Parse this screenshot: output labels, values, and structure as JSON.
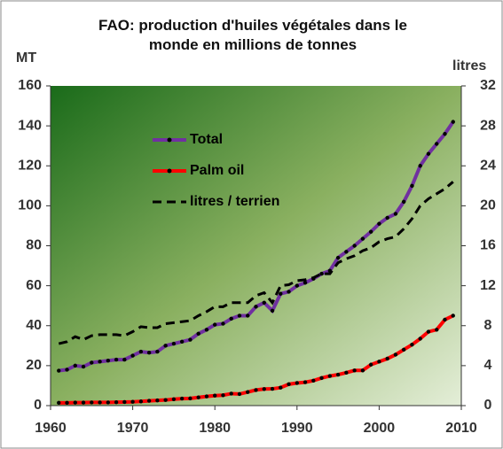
{
  "chart_data": {
    "type": "line",
    "title": "FAO: production d'huiles végétales dans le monde en millions de tonnes",
    "y_label": "MT",
    "y2_label": "litres",
    "x": [
      1961,
      1962,
      1963,
      1964,
      1965,
      1966,
      1967,
      1968,
      1969,
      1970,
      1971,
      1972,
      1973,
      1974,
      1975,
      1976,
      1977,
      1978,
      1979,
      1980,
      1981,
      1982,
      1983,
      1984,
      1985,
      1986,
      1987,
      1988,
      1989,
      1990,
      1991,
      1992,
      1993,
      1994,
      1995,
      1996,
      1997,
      1998,
      1999,
      2000,
      2001,
      2002,
      2003,
      2004,
      2005,
      2006,
      2007,
      2008,
      2009
    ],
    "series": [
      {
        "name": "Total",
        "color": "#7030a0",
        "marker_color": "#000000",
        "values": [
          17.5,
          18,
          20,
          19.5,
          21.5,
          22,
          22.5,
          23,
          23,
          25,
          27,
          26.5,
          27,
          30,
          31,
          32,
          33,
          36,
          38,
          40.5,
          41,
          43.5,
          45,
          45,
          49.5,
          51.5,
          47.5,
          56,
          57,
          60,
          61.5,
          63.5,
          66,
          67.5,
          74,
          77,
          80,
          83.5,
          87,
          91,
          94,
          96,
          102,
          110,
          120,
          126,
          131,
          136,
          142
        ]
      },
      {
        "name": "Palm oil",
        "color": "#ff0000",
        "marker_color": "#000000",
        "values": [
          1.4,
          1.4,
          1.5,
          1.5,
          1.6,
          1.6,
          1.6,
          1.7,
          1.8,
          1.9,
          2.1,
          2.4,
          2.6,
          2.8,
          3.2,
          3.5,
          3.6,
          4.1,
          4.6,
          5,
          5.2,
          6,
          5.8,
          6.8,
          7.8,
          8.3,
          8.4,
          9,
          10.7,
          11.3,
          11.7,
          12.5,
          13.8,
          14.8,
          15.5,
          16.5,
          17.6,
          17.6,
          20.5,
          22,
          23.5,
          25.5,
          28,
          30.5,
          33.5,
          37,
          38,
          43,
          45
        ]
      },
      {
        "name": "litres / terrien",
        "color": "#000000",
        "dashed": true,
        "axis": "y2",
        "values": [
          6.2,
          6.4,
          6.9,
          6.6,
          7,
          7.1,
          7.1,
          7.1,
          7,
          7.4,
          7.9,
          7.8,
          7.8,
          8.2,
          8.3,
          8.4,
          8.5,
          9,
          9.4,
          9.9,
          9.9,
          10.3,
          10.3,
          10.3,
          11,
          11.3,
          10.3,
          12,
          12.1,
          12.5,
          12.6,
          12.8,
          13.2,
          13.2,
          14.3,
          14.7,
          15,
          15.5,
          15.8,
          16.4,
          16.7,
          16.9,
          17.7,
          18.7,
          20,
          20.7,
          21.2,
          21.7,
          22.4
        ]
      }
    ],
    "xlim": [
      1960,
      2010
    ],
    "xticks": [
      1960,
      1970,
      1980,
      1990,
      2000,
      2010
    ],
    "ylim": [
      0,
      160
    ],
    "yticks": [
      0,
      20,
      40,
      60,
      80,
      100,
      120,
      140,
      160
    ],
    "y2lim": [
      0,
      32
    ],
    "y2ticks": [
      0,
      4,
      8,
      12,
      16,
      20,
      24,
      28,
      32
    ],
    "grid": false
  }
}
